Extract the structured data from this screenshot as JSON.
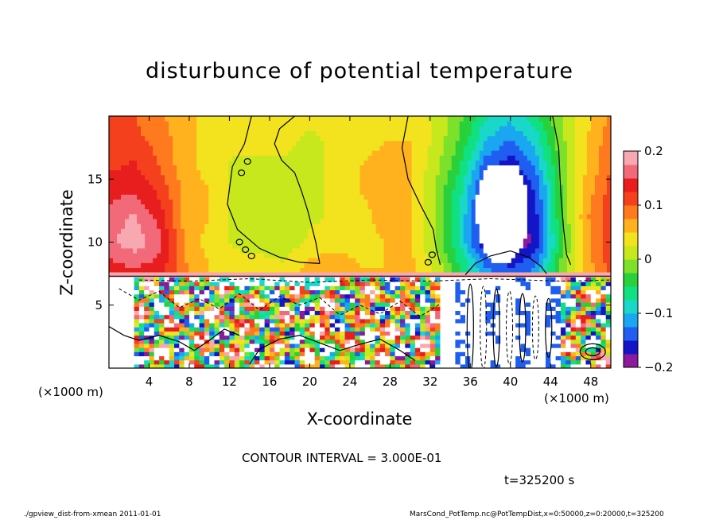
{
  "chart_data": {
    "type": "heatmap",
    "title": "disturbunce of potential temperature",
    "xlabel": "X-coordinate",
    "ylabel": "Z-coordinate",
    "x_unit_note": "(×1000 m)",
    "xlim": [
      0,
      50
    ],
    "ylim": [
      0,
      20
    ],
    "x_ticks": [
      4,
      8,
      12,
      16,
      20,
      24,
      28,
      32,
      36,
      40,
      44,
      48
    ],
    "y_ticks": [
      5,
      10,
      15
    ],
    "colorbar": {
      "min": -0.2,
      "max": 0.2,
      "ticks": [
        {
          "value": 0.2,
          "label": "0.2"
        },
        {
          "value": 0.1,
          "label": "0.1"
        },
        {
          "value": 0,
          "label": "0"
        },
        {
          "value": -0.1,
          "label": "−0.1"
        },
        {
          "value": -0.2,
          "label": "−0.2"
        }
      ],
      "colors": [
        "#8b1a9c",
        "#1515c8",
        "#1f5ef0",
        "#1aa6f0",
        "#19d7c9",
        "#10e080",
        "#28d13c",
        "#7de02a",
        "#c8e81e",
        "#f2e31e",
        "#ffb21e",
        "#ff7a1e",
        "#f5401e",
        "#e81e1e",
        "#f26a7a",
        "#f8a8b0"
      ]
    },
    "contour_interval": "3.000E-01",
    "time": 325200,
    "time_unit": "s",
    "field_grid": {
      "x": [
        0,
        2.5,
        5,
        7.5,
        10,
        12.5,
        15,
        17.5,
        20,
        22.5,
        25,
        27.5,
        30,
        32.5,
        35,
        37.5,
        40,
        42.5,
        45,
        47.5,
        50
      ],
      "z": [
        8,
        10,
        12,
        14,
        16,
        18,
        20
      ],
      "values": [
        [
          0.14,
          0.15,
          0.14,
          0.08,
          0.05,
          0.04,
          0.04,
          0.03,
          0.06,
          0.07,
          0.05,
          0.05,
          0.06,
          0.02,
          -0.05,
          -0.12,
          -0.15,
          -0.12,
          -0.02,
          0.06,
          0.11
        ],
        [
          0.17,
          0.19,
          0.16,
          0.07,
          0.04,
          0.02,
          0.01,
          0.01,
          0.03,
          0.04,
          0.04,
          0.05,
          0.05,
          0.0,
          -0.08,
          -0.18,
          -0.2,
          -0.17,
          -0.04,
          0.06,
          0.12
        ],
        [
          0.16,
          0.18,
          0.14,
          0.07,
          0.05,
          0.02,
          0.0,
          0.0,
          0.02,
          0.03,
          0.04,
          0.06,
          0.05,
          0.0,
          -0.08,
          -0.18,
          -0.2,
          -0.16,
          -0.03,
          0.07,
          0.12
        ],
        [
          0.14,
          0.15,
          0.12,
          0.07,
          0.05,
          0.02,
          0.0,
          0.01,
          0.02,
          0.03,
          0.05,
          0.06,
          0.05,
          0.0,
          -0.07,
          -0.17,
          -0.2,
          -0.15,
          -0.03,
          0.06,
          0.11
        ],
        [
          0.12,
          0.13,
          0.1,
          0.06,
          0.04,
          0.02,
          0.02,
          0.02,
          0.02,
          0.03,
          0.05,
          0.06,
          0.05,
          0.01,
          -0.05,
          -0.14,
          -0.17,
          -0.12,
          -0.02,
          0.05,
          0.1
        ],
        [
          0.11,
          0.11,
          0.09,
          0.06,
          0.04,
          0.03,
          0.03,
          0.03,
          0.02,
          0.03,
          0.04,
          0.05,
          0.05,
          0.02,
          -0.03,
          -0.1,
          -0.13,
          -0.09,
          -0.01,
          0.05,
          0.09
        ],
        [
          0.1,
          0.1,
          0.08,
          0.06,
          0.04,
          0.03,
          0.03,
          0.03,
          0.03,
          0.03,
          0.04,
          0.05,
          0.04,
          0.02,
          -0.02,
          -0.07,
          -0.09,
          -0.06,
          0.0,
          0.04,
          0.08
        ]
      ]
    }
  },
  "labels": {
    "contour_note": "CONTOUR INTERVAL = 3.000E-01",
    "time_note": "t=325200 s",
    "footer_left": "./gpview_dist-from-xmean  2011-01-01",
    "footer_right": "MarsCond_PotTemp.nc@PotTempDist,x=0:50000,z=0:20000,t=325200"
  }
}
